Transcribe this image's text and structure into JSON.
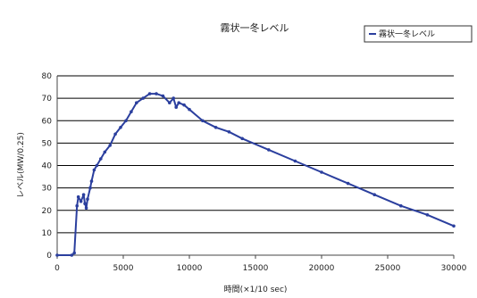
{
  "chart_data": {
    "type": "line",
    "title": "霧状一冬レベル",
    "xlabel": "時間(×1/10 sec)",
    "ylabel": "レベル(MW/0.25)",
    "xlim": [
      0,
      30000
    ],
    "ylim": [
      0,
      80
    ],
    "x_ticks": [
      "0",
      "5000",
      "10000",
      "15000",
      "20000",
      "25000",
      "30000"
    ],
    "y_ticks": [
      "0",
      "10",
      "20",
      "30",
      "40",
      "50",
      "60",
      "70",
      "80"
    ],
    "grid": "horizontal",
    "legend_position": "top-right",
    "series": [
      {
        "name": "霧状一冬レベル",
        "color": "#2b3f9e",
        "x": [
          0,
          1100,
          1300,
          1500,
          1600,
          1800,
          2000,
          2100,
          2200,
          2300,
          2500,
          2600,
          2800,
          3000,
          3300,
          3600,
          4000,
          4400,
          4800,
          5200,
          5600,
          6000,
          6500,
          7000,
          7500,
          8000,
          8500,
          8800,
          9000,
          9200,
          9600,
          10000,
          11000,
          12000,
          13000,
          14000,
          16000,
          18000,
          20000,
          22000,
          24000,
          26000,
          28000,
          30000
        ],
        "y": [
          0,
          0,
          1,
          22,
          26,
          24,
          27,
          23,
          21,
          25,
          30,
          33,
          38,
          40,
          43,
          46,
          49,
          54,
          57,
          60,
          64,
          68,
          70,
          72,
          72,
          71,
          68,
          70,
          66,
          68,
          67,
          65,
          60,
          57,
          55,
          52,
          47,
          42,
          37,
          32,
          27,
          22,
          18,
          13
        ]
      }
    ]
  }
}
